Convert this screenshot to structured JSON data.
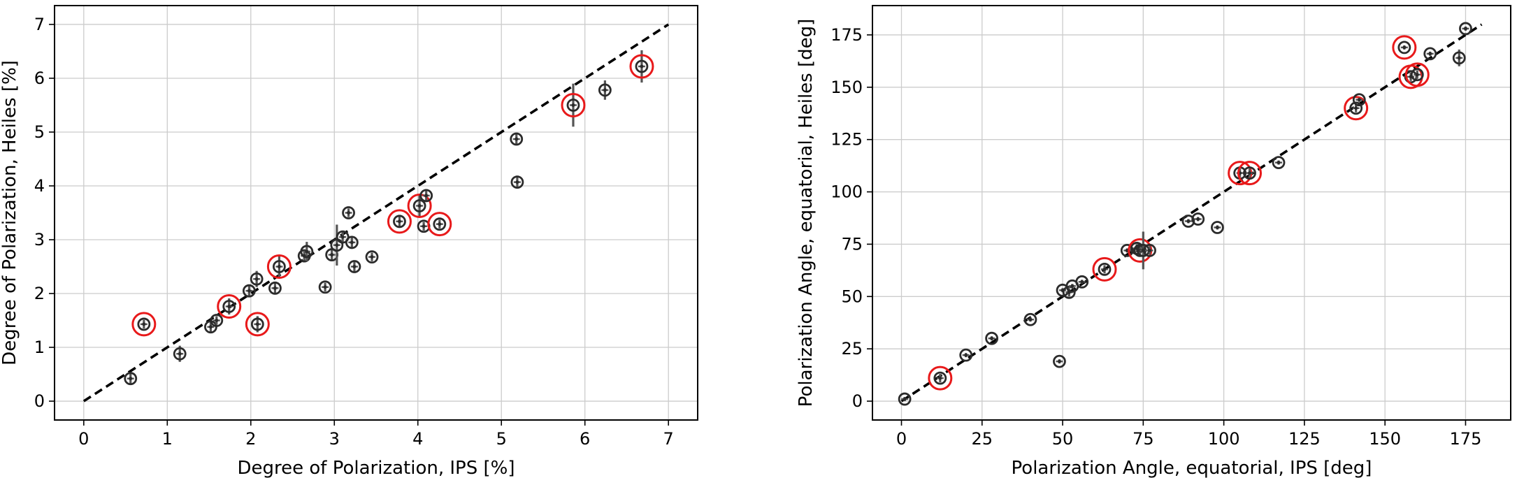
{
  "chart_data": [
    {
      "type": "scatter",
      "title": "",
      "xlabel": "Degree of Polarization, IPS [%]",
      "ylabel": "Degree of Polarization, Heiles [%]",
      "xlim": [
        -0.35,
        7.35
      ],
      "ylim": [
        -0.35,
        7.35
      ],
      "xticks": [
        0,
        1,
        2,
        3,
        4,
        5,
        6,
        7
      ],
      "yticks": [
        0,
        1,
        2,
        3,
        4,
        5,
        6,
        7
      ],
      "grid": true,
      "reference_line": {
        "style": "dashed",
        "x": [
          0,
          7
        ],
        "y": [
          0,
          7
        ]
      },
      "points": [
        {
          "x": 0.56,
          "y": 0.42,
          "yerr": 0.12,
          "highlight": false
        },
        {
          "x": 0.72,
          "y": 1.43,
          "yerr": 0.08,
          "highlight": true
        },
        {
          "x": 1.15,
          "y": 0.88,
          "yerr": 0.15,
          "highlight": false
        },
        {
          "x": 1.52,
          "y": 1.38,
          "yerr": 0.1,
          "highlight": false
        },
        {
          "x": 1.59,
          "y": 1.5,
          "yerr": 0.08,
          "highlight": false
        },
        {
          "x": 1.74,
          "y": 1.76,
          "yerr": 0.15,
          "highlight": true
        },
        {
          "x": 1.98,
          "y": 2.05,
          "yerr": 0.1,
          "highlight": false
        },
        {
          "x": 2.07,
          "y": 2.27,
          "yerr": 0.15,
          "highlight": false
        },
        {
          "x": 2.08,
          "y": 1.43,
          "yerr": 0.15,
          "highlight": true
        },
        {
          "x": 2.29,
          "y": 2.1,
          "yerr": 0.1,
          "highlight": false
        },
        {
          "x": 2.34,
          "y": 2.5,
          "yerr": 0.2,
          "highlight": true
        },
        {
          "x": 2.64,
          "y": 2.7,
          "yerr": 0.12,
          "highlight": false
        },
        {
          "x": 2.67,
          "y": 2.78,
          "yerr": 0.18,
          "highlight": false
        },
        {
          "x": 2.89,
          "y": 2.12,
          "yerr": 0.08,
          "highlight": false
        },
        {
          "x": 2.97,
          "y": 2.72,
          "yerr": 0.1,
          "highlight": false
        },
        {
          "x": 3.03,
          "y": 2.9,
          "yerr": 0.38,
          "highlight": false
        },
        {
          "x": 3.1,
          "y": 3.05,
          "yerr": 0.1,
          "highlight": false
        },
        {
          "x": 3.17,
          "y": 3.5,
          "yerr": 0.08,
          "highlight": false
        },
        {
          "x": 3.21,
          "y": 2.95,
          "yerr": 0.12,
          "highlight": false
        },
        {
          "x": 3.24,
          "y": 2.5,
          "yerr": 0.1,
          "highlight": false
        },
        {
          "x": 3.45,
          "y": 2.68,
          "yerr": 0.08,
          "highlight": false
        },
        {
          "x": 3.78,
          "y": 3.34,
          "yerr": 0.12,
          "highlight": true
        },
        {
          "x": 4.02,
          "y": 3.63,
          "yerr": 0.2,
          "highlight": true
        },
        {
          "x": 4.07,
          "y": 3.25,
          "yerr": 0.08,
          "highlight": false
        },
        {
          "x": 4.1,
          "y": 3.82,
          "yerr": 0.12,
          "highlight": false
        },
        {
          "x": 4.26,
          "y": 3.29,
          "yerr": 0.08,
          "highlight": true
        },
        {
          "x": 5.18,
          "y": 4.87,
          "yerr": 0.1,
          "highlight": false
        },
        {
          "x": 5.19,
          "y": 4.07,
          "yerr": 0.12,
          "highlight": false
        },
        {
          "x": 5.86,
          "y": 5.5,
          "yerr": 0.4,
          "highlight": true
        },
        {
          "x": 6.24,
          "y": 5.78,
          "yerr": 0.18,
          "highlight": false
        },
        {
          "x": 6.68,
          "y": 6.22,
          "yerr": 0.3,
          "highlight": true
        }
      ]
    },
    {
      "type": "scatter",
      "title": "",
      "xlabel": "Polarization Angle, equatorial, IPS [deg]",
      "ylabel": "Polarization Angle, equatorial, Heiles [deg]",
      "xlim": [
        -9,
        189
      ],
      "ylim": [
        -9,
        189
      ],
      "xticks": [
        0,
        25,
        50,
        75,
        100,
        125,
        150,
        175
      ],
      "yticks": [
        0,
        25,
        50,
        75,
        100,
        125,
        150,
        175
      ],
      "grid": true,
      "reference_line": {
        "style": "dashed",
        "x": [
          0,
          180
        ],
        "y": [
          0,
          180
        ]
      },
      "points": [
        {
          "x": 1,
          "y": 1,
          "yerr": 1,
          "highlight": false
        },
        {
          "x": 12,
          "y": 11,
          "yerr": 2,
          "highlight": true
        },
        {
          "x": 20,
          "y": 22,
          "yerr": 1,
          "highlight": false
        },
        {
          "x": 28,
          "y": 30,
          "yerr": 1,
          "highlight": false
        },
        {
          "x": 40,
          "y": 39,
          "yerr": 1,
          "highlight": false
        },
        {
          "x": 49,
          "y": 19,
          "yerr": 1,
          "highlight": false
        },
        {
          "x": 50,
          "y": 53,
          "yerr": 1,
          "highlight": false
        },
        {
          "x": 52,
          "y": 52,
          "yerr": 2,
          "highlight": false
        },
        {
          "x": 53,
          "y": 55,
          "yerr": 1,
          "highlight": false
        },
        {
          "x": 56,
          "y": 57,
          "yerr": 1,
          "highlight": false
        },
        {
          "x": 63,
          "y": 63,
          "yerr": 2,
          "highlight": true
        },
        {
          "x": 70,
          "y": 72,
          "yerr": 1,
          "highlight": false
        },
        {
          "x": 73,
          "y": 73,
          "yerr": 2,
          "highlight": false
        },
        {
          "x": 74,
          "y": 72,
          "yerr": 3,
          "highlight": true
        },
        {
          "x": 75,
          "y": 72,
          "yerr": 9,
          "highlight": false
        },
        {
          "x": 77,
          "y": 72,
          "yerr": 2,
          "highlight": false
        },
        {
          "x": 89,
          "y": 86,
          "yerr": 1,
          "highlight": false
        },
        {
          "x": 92,
          "y": 87,
          "yerr": 1,
          "highlight": false
        },
        {
          "x": 98,
          "y": 83,
          "yerr": 1,
          "highlight": false
        },
        {
          "x": 105,
          "y": 109,
          "yerr": 2,
          "highlight": true
        },
        {
          "x": 108,
          "y": 109,
          "yerr": 2,
          "highlight": true
        },
        {
          "x": 117,
          "y": 114,
          "yerr": 1,
          "highlight": false
        },
        {
          "x": 141,
          "y": 140,
          "yerr": 2,
          "highlight": true
        },
        {
          "x": 142,
          "y": 144,
          "yerr": 1,
          "highlight": false
        },
        {
          "x": 156,
          "y": 169,
          "yerr": 1,
          "highlight": true
        },
        {
          "x": 158,
          "y": 155,
          "yerr": 2,
          "highlight": true
        },
        {
          "x": 160,
          "y": 156,
          "yerr": 2,
          "highlight": true
        },
        {
          "x": 164,
          "y": 166,
          "yerr": 1,
          "highlight": false
        },
        {
          "x": 173,
          "y": 164,
          "yerr": 4,
          "highlight": false
        },
        {
          "x": 175,
          "y": 178,
          "yerr": 1,
          "highlight": false
        }
      ]
    }
  ],
  "colors": {
    "marker": "#2b2b2b",
    "errorbar": "#555555",
    "highlight": "#e8191a",
    "grid": "#cccccc",
    "reference_line": "#000000"
  }
}
